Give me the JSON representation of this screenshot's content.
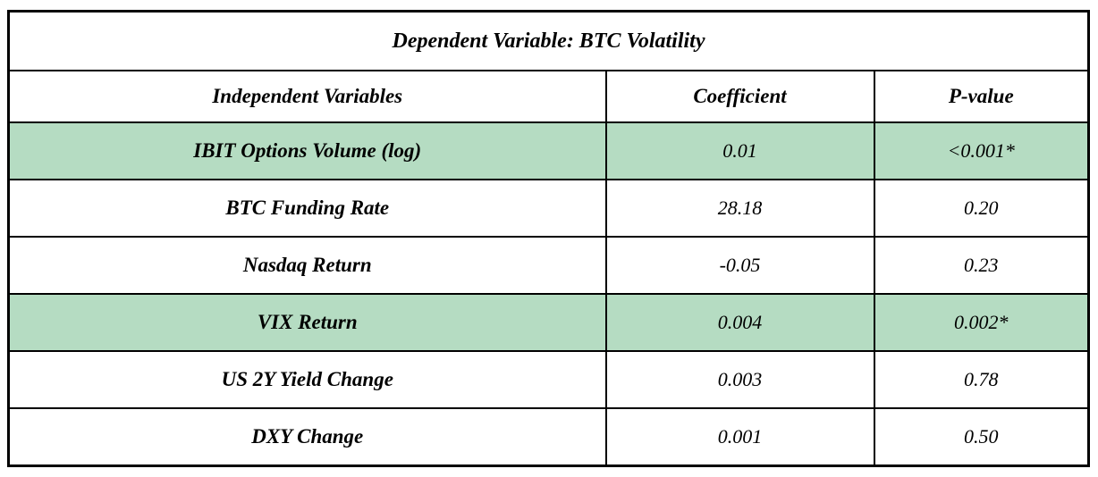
{
  "table": {
    "title": "Dependent Variable: BTC Volatility",
    "columns": [
      "Independent Variables",
      "Coefficient",
      "P-value"
    ],
    "highlight_color": "#b5dcc2",
    "border_color": "#000000",
    "rows": [
      {
        "variable": "IBIT Options Volume (log)",
        "coefficient": "0.01",
        "p_value": "<0.001*",
        "highlighted": true
      },
      {
        "variable": "BTC Funding Rate",
        "coefficient": "28.18",
        "p_value": "0.20",
        "highlighted": false
      },
      {
        "variable": "Nasdaq Return",
        "coefficient": "-0.05",
        "p_value": "0.23",
        "highlighted": false
      },
      {
        "variable": "VIX Return",
        "coefficient": "0.004",
        "p_value": "0.002*",
        "highlighted": true
      },
      {
        "variable": "US 2Y Yield Change",
        "coefficient": "0.003",
        "p_value": "0.78",
        "highlighted": false
      },
      {
        "variable": "DXY Change",
        "coefficient": "0.001",
        "p_value": "0.50",
        "highlighted": false
      }
    ]
  }
}
